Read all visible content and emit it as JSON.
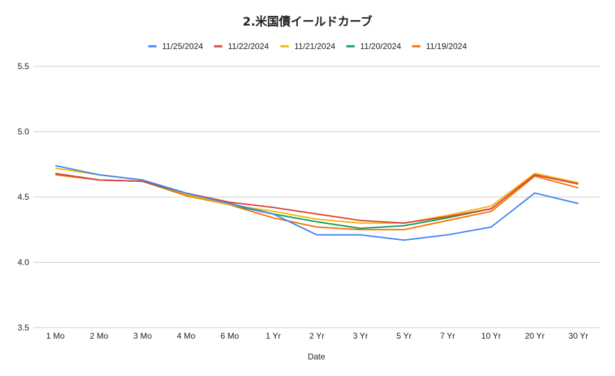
{
  "chart_data": {
    "type": "line",
    "title": "2.米国債イールドカーブ",
    "xlabel": "Date",
    "ylabel": "",
    "categories": [
      "1 Mo",
      "2 Mo",
      "3 Mo",
      "4 Mo",
      "6 Mo",
      "1 Yr",
      "2 Yr",
      "3 Yr",
      "5 Yr",
      "7 Yr",
      "10 Yr",
      "20 Yr",
      "30 Yr"
    ],
    "ylim": [
      3.5,
      5.5
    ],
    "yticks": [
      "3.5",
      "4.0",
      "4.5",
      "5.0",
      "5.5"
    ],
    "grid": true,
    "legend_position": "top",
    "series": [
      {
        "name": "11/25/2024",
        "color": "#4285F4",
        "values": [
          4.74,
          4.67,
          4.63,
          4.53,
          4.45,
          4.37,
          4.21,
          4.21,
          4.17,
          4.21,
          4.27,
          4.53,
          4.45
        ]
      },
      {
        "name": "11/22/2024",
        "color": "#DB4437",
        "values": [
          4.68,
          4.63,
          4.62,
          4.53,
          4.46,
          4.42,
          4.37,
          4.32,
          4.3,
          4.35,
          4.41,
          4.67,
          4.6
        ]
      },
      {
        "name": "11/21/2024",
        "color": "#F4B400",
        "values": [
          4.72,
          4.67,
          4.63,
          4.52,
          4.44,
          4.39,
          4.33,
          4.3,
          4.3,
          4.36,
          4.43,
          4.68,
          4.61
        ]
      },
      {
        "name": "11/20/2024",
        "color": "#0F9D58",
        "values": [
          4.68,
          4.63,
          4.62,
          4.52,
          4.44,
          4.37,
          4.31,
          4.26,
          4.28,
          4.34,
          4.41,
          4.67,
          4.6
        ]
      },
      {
        "name": "11/19/2024",
        "color": "#FF6D01",
        "values": [
          4.67,
          4.63,
          4.62,
          4.51,
          4.44,
          4.34,
          4.27,
          4.25,
          4.25,
          4.32,
          4.39,
          4.66,
          4.57
        ]
      }
    ]
  }
}
